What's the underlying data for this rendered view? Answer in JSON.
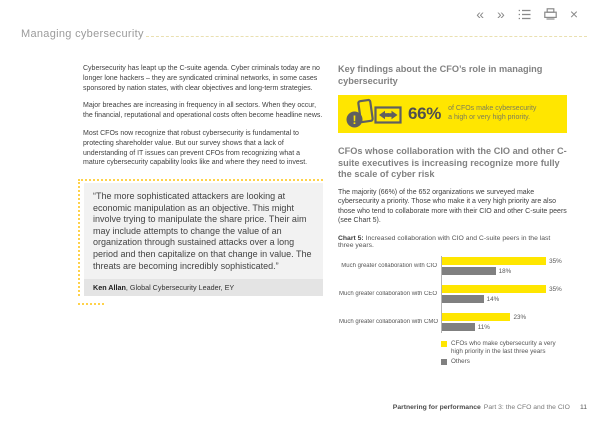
{
  "header": {
    "title": "Managing cybersecurity"
  },
  "toolbar": {
    "icons": [
      {
        "name": "previous-pages",
        "glyph": "«"
      },
      {
        "name": "next-pages",
        "glyph": "»"
      },
      {
        "name": "table-of-contents",
        "glyph": "list"
      },
      {
        "name": "print",
        "glyph": "printer"
      },
      {
        "name": "close",
        "glyph": "×"
      }
    ]
  },
  "left_column": {
    "paragraphs": [
      "Cybersecurity has leapt up the C-suite agenda. Cyber criminals today are no longer lone hackers – they are syndicated criminal networks, in some cases sponsored by nation states, with clear objectives and long-term strategies.",
      "Major breaches are increasing in frequency in all sectors. When they occur, the financial, reputational and operational costs often become headline news.",
      "Most CFOs now recognize that robust cybersecurity is fundamental to protecting shareholder value. But our survey shows that a lack of understanding of IT issues can prevent CFOs from recognizing what a mature cybersecurity capability looks like and where they need to invest."
    ]
  },
  "quote": {
    "text": "“The more sophisticated attackers are looking at economic manipulation as an objective. This might involve trying to manipulate the share price. Their aim may include attempts to change the value of an organization through sustained attacks over a long period and then capitalize on that change in value. The threats are becoming incredibly sophisticated.”",
    "author": "Ken Allan",
    "author_role": ", Global Cybersecurity Leader, EY"
  },
  "right_column": {
    "heading": "Key findings about the CFO’s role in managing cybersecurity",
    "banner": {
      "stat": "66%",
      "caption": "of CFOs make cybersecurity a high or very high priority."
    },
    "subheading": "CFOs whose collaboration with the CIO and other C-suite executives is increasing recognize more fully the scale of cyber risk",
    "paragraph": "The majority (66%) of the 652 organizations we surveyed make cybersecurity a priority. Those who make it a very high priority are also those who tend to collaborate more with their CIO and other C-suite peers (see Chart 5).",
    "chart_caption_label": "Chart 5:",
    "chart_caption_text": " Increased collaboration with CIO and C-suite peers in the last three years."
  },
  "chart_data": {
    "type": "bar",
    "orientation": "horizontal",
    "title": "Chart 5: Increased collaboration with CIO and C-suite peers in the last three years.",
    "categories": [
      "Much greater collaboration with CIO",
      "Much greater collaboration with CEO",
      "Much greater collaboration with CMO"
    ],
    "series": [
      {
        "name": "CFOs who make cybersecurity a very high priority in the last three years",
        "color": "#FFE600",
        "values": [
          35,
          35,
          23
        ]
      },
      {
        "name": "Others",
        "color": "#808080",
        "values": [
          18,
          14,
          11
        ]
      }
    ],
    "value_suffix": "%",
    "xlim": [
      0,
      42
    ],
    "legend_position": "bottom",
    "grid": false
  },
  "footer": {
    "book_title": "Partnering for performance",
    "chapter": "Part 3: the CFO and the CIO",
    "page_number": "11"
  },
  "colors": {
    "ey_yellow": "#FFE600",
    "bar_gray": "#808080",
    "icon_dark": "#5f5f60",
    "heading_gray": "#828282",
    "body_text": "#3f3f3f",
    "quote_bg": "#f2f2f2",
    "attribution_bg": "#e4e4e4",
    "dotted_accent": "#ffd24a",
    "rule_yellow": "#eae0b0"
  }
}
